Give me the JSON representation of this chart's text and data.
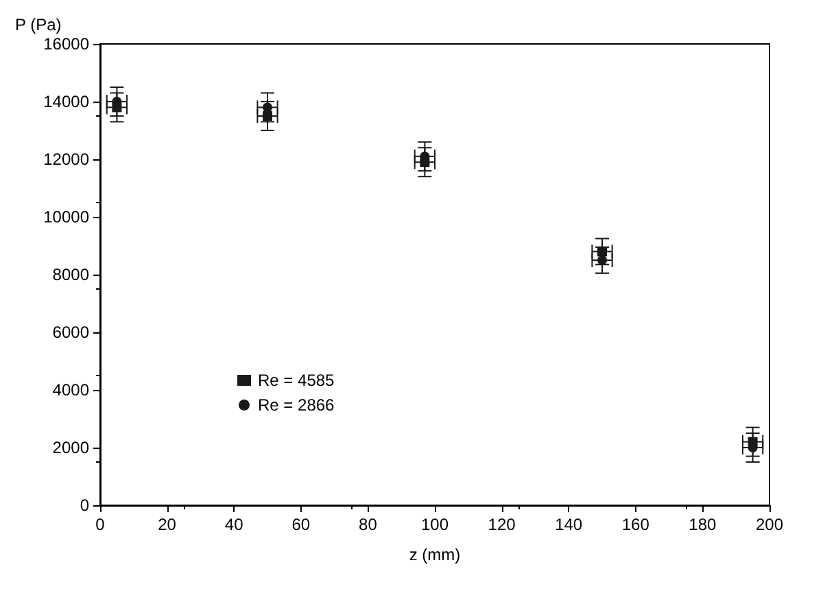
{
  "chart_data": {
    "type": "scatter",
    "xlabel": "z (mm)",
    "ylabel": "P (Pa)",
    "x": [
      5,
      50,
      97,
      150,
      195
    ],
    "series": [
      {
        "name": "Re = 4585",
        "color": "#1a1a1a",
        "marker": "square",
        "values": [
          13800,
          13500,
          11900,
          8800,
          2200
        ],
        "errors": [
          500,
          500,
          500,
          450,
          500
        ],
        "xerrors": [
          3,
          3,
          3,
          3,
          3
        ]
      },
      {
        "name": "Re = 2866",
        "color": "#1a1a1a",
        "marker": "circle",
        "values": [
          14000,
          13800,
          12100,
          8500,
          2000
        ],
        "errors": [
          500,
          500,
          500,
          450,
          500
        ],
        "xerrors": [
          3,
          3,
          3,
          3,
          3
        ]
      }
    ],
    "xlim": [
      0,
      200
    ],
    "xticks": [
      0,
      20,
      40,
      60,
      80,
      100,
      120,
      140,
      160,
      180,
      200
    ],
    "ylim": [
      0,
      16000
    ],
    "yticks": [
      0,
      2000,
      4000,
      6000,
      8000,
      10000,
      12000,
      14000,
      16000
    ],
    "grid": false,
    "legend": "left"
  }
}
